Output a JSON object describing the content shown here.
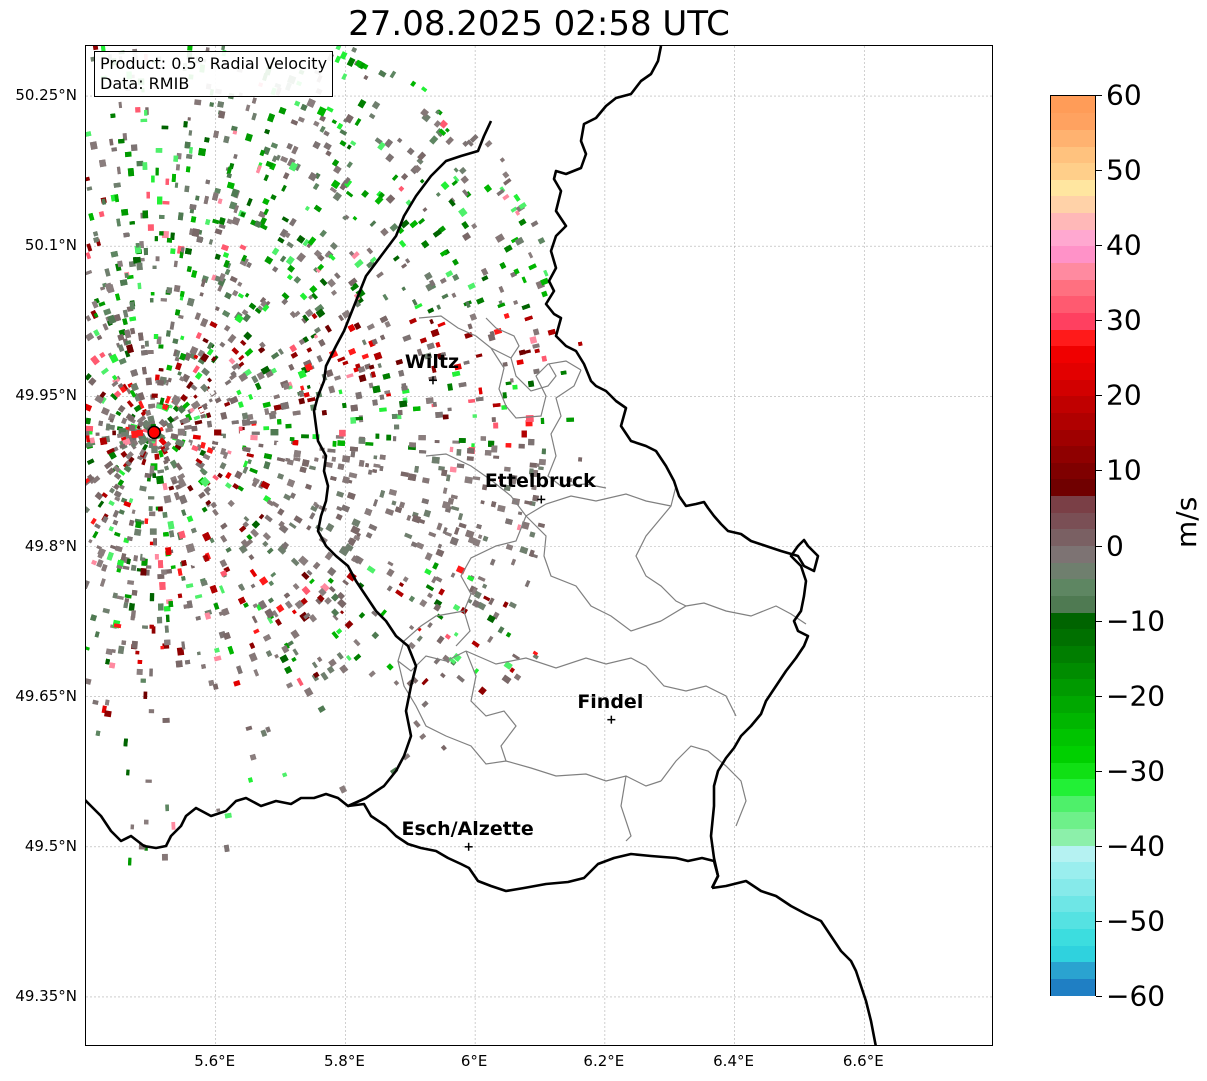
{
  "title": "27.08.2025 02:58 UTC",
  "info_box": {
    "product": "Product: 0.5° Radial Velocity",
    "source": "Data: RMIB"
  },
  "map": {
    "lon_range": [
      5.4,
      6.8
    ],
    "lat_range": [
      49.3,
      50.3
    ],
    "lat_ticks": [
      {
        "value": 50.25,
        "label": "50.25°N"
      },
      {
        "value": 50.1,
        "label": "50.1°N"
      },
      {
        "value": 49.95,
        "label": "49.95°N"
      },
      {
        "value": 49.8,
        "label": "49.8°N"
      },
      {
        "value": 49.65,
        "label": "49.65°N"
      },
      {
        "value": 49.5,
        "label": "49.5°N"
      },
      {
        "value": 49.35,
        "label": "49.35°N"
      }
    ],
    "lon_ticks": [
      {
        "value": 5.6,
        "label": "5.6°E"
      },
      {
        "value": 5.8,
        "label": "5.8°E"
      },
      {
        "value": 6.0,
        "label": "6°E"
      },
      {
        "value": 6.2,
        "label": "6.2°E"
      },
      {
        "value": 6.4,
        "label": "6.4°E"
      },
      {
        "value": 6.6,
        "label": "6.6°E"
      }
    ],
    "radar_site": {
      "lon": 5.505,
      "lat": 49.914,
      "color": "#ff0000"
    },
    "cities": [
      {
        "name": "Wiltz",
        "lon": 5.935,
        "lat": 49.966
      },
      {
        "name": "Ettelbruck",
        "lon": 6.102,
        "lat": 49.847
      },
      {
        "name": "Findel",
        "lon": 6.21,
        "lat": 49.627
      },
      {
        "name": "Esch/Alzette",
        "lon": 5.99,
        "lat": 49.5
      }
    ],
    "grid": true
  },
  "colorbar": {
    "unit": "m/s",
    "range": [
      -60,
      60
    ],
    "ticks": [
      {
        "value": 60,
        "label": "60"
      },
      {
        "value": 50,
        "label": "50"
      },
      {
        "value": 40,
        "label": "40"
      },
      {
        "value": 30,
        "label": "30"
      },
      {
        "value": 20,
        "label": "20"
      },
      {
        "value": 10,
        "label": "10"
      },
      {
        "value": 0,
        "label": "0"
      },
      {
        "value": -10,
        "label": "−10"
      },
      {
        "value": -20,
        "label": "−20"
      },
      {
        "value": -30,
        "label": "−30"
      },
      {
        "value": -40,
        "label": "−40"
      },
      {
        "value": -50,
        "label": "−50"
      },
      {
        "value": -60,
        "label": "−60"
      }
    ],
    "colors": [
      "#1f7fc4",
      "#2aa3d0",
      "#2fd2de",
      "#3cdddf",
      "#55e2e2",
      "#6ee6e6",
      "#86eaea",
      "#9aeeee",
      "#b5f2f2",
      "#8cf0aa",
      "#6ef08a",
      "#4ef06a",
      "#22f036",
      "#10e014",
      "#00d000",
      "#00c400",
      "#00b600",
      "#00a800",
      "#009a00",
      "#008c00",
      "#007e00",
      "#007000",
      "#006400",
      "#4f7a52",
      "#5e8662",
      "#6f7f6e",
      "#7d7373",
      "#7a6063",
      "#7a4f55",
      "#7a3f46",
      "#700000",
      "#7f0000",
      "#8f0000",
      "#9f0000",
      "#b00000",
      "#c00000",
      "#d20000",
      "#e30000",
      "#f00000",
      "#ff1a1a",
      "#ff4060",
      "#ff5a70",
      "#ff7080",
      "#ff8aa0",
      "#ff92c8",
      "#ffa8d0",
      "#ffb8b8",
      "#ffd2a8",
      "#ffe6a0",
      "#ffcf8a",
      "#ffc27e",
      "#ffb270",
      "#ffa260",
      "#ff9c58"
    ]
  }
}
